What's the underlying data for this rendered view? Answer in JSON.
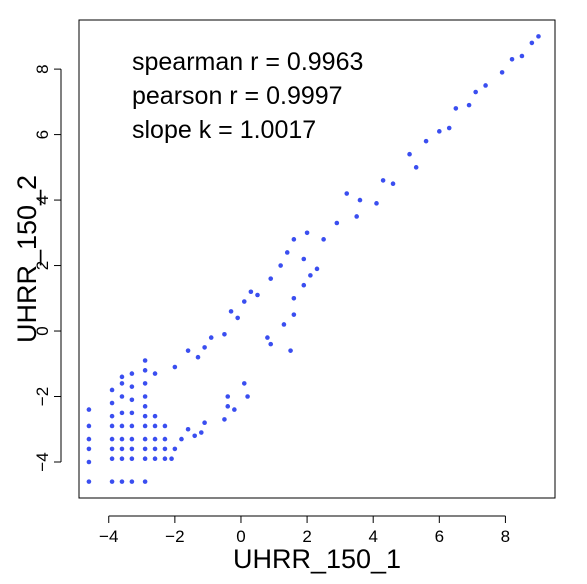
{
  "chart_data": {
    "type": "scatter",
    "xlabel": "UHRR_150_1",
    "ylabel": "UHRR_150_2",
    "xlim": [
      -4.9,
      9.5
    ],
    "ylim": [
      -5.1,
      9.5
    ],
    "x_ticks": [
      -4,
      -2,
      0,
      2,
      4,
      6,
      8
    ],
    "y_ticks": [
      -4,
      -2,
      0,
      2,
      4,
      6,
      8
    ],
    "x_tick_labels": [
      "−4",
      "−2",
      "0",
      "2",
      "4",
      "6",
      "8"
    ],
    "y_tick_labels": [
      "−4",
      "−2",
      "0",
      "2",
      "4",
      "6",
      "8"
    ],
    "grid": false,
    "point_color": "#3a4ef0",
    "annotations": [
      "spearman r =  0.9963",
      "pearson r =  0.9997",
      "slope k =  1.0017"
    ],
    "series": [
      {
        "points": [
          [
            -4.6,
            -4.6
          ],
          [
            -4.6,
            -3.6
          ],
          [
            -4.6,
            -3.3
          ],
          [
            -4.6,
            -2.9
          ],
          [
            -4.6,
            -2.4
          ],
          [
            -4.6,
            -4.0
          ],
          [
            -3.9,
            -4.6
          ],
          [
            -3.9,
            -3.9
          ],
          [
            -3.9,
            -3.6
          ],
          [
            -3.9,
            -3.3
          ],
          [
            -3.9,
            -2.9
          ],
          [
            -3.9,
            -2.6
          ],
          [
            -3.9,
            -2.2
          ],
          [
            -3.9,
            -1.8
          ],
          [
            -3.6,
            -4.6
          ],
          [
            -3.6,
            -3.9
          ],
          [
            -3.6,
            -3.6
          ],
          [
            -3.6,
            -3.3
          ],
          [
            -3.6,
            -2.9
          ],
          [
            -3.6,
            -2.5
          ],
          [
            -3.6,
            -2.0
          ],
          [
            -3.6,
            -1.6
          ],
          [
            -3.6,
            -1.4
          ],
          [
            -3.3,
            -4.6
          ],
          [
            -3.3,
            -3.9
          ],
          [
            -3.3,
            -3.6
          ],
          [
            -3.3,
            -3.3
          ],
          [
            -3.3,
            -2.9
          ],
          [
            -3.3,
            -2.5
          ],
          [
            -3.3,
            -2.1
          ],
          [
            -3.3,
            -1.7
          ],
          [
            -3.3,
            -1.3
          ],
          [
            -2.9,
            -4.6
          ],
          [
            -2.9,
            -3.9
          ],
          [
            -2.9,
            -3.6
          ],
          [
            -2.9,
            -3.3
          ],
          [
            -2.9,
            -2.9
          ],
          [
            -2.9,
            -2.6
          ],
          [
            -2.9,
            -2.3
          ],
          [
            -2.9,
            -2.0
          ],
          [
            -2.9,
            -1.6
          ],
          [
            -2.9,
            -1.2
          ],
          [
            -2.9,
            -0.9
          ],
          [
            -2.6,
            -3.9
          ],
          [
            -2.6,
            -3.6
          ],
          [
            -2.6,
            -3.3
          ],
          [
            -2.6,
            -2.9
          ],
          [
            -2.6,
            -2.6
          ],
          [
            -2.6,
            -1.3
          ],
          [
            -2.3,
            -3.9
          ],
          [
            -2.3,
            -3.6
          ],
          [
            -2.3,
            -3.3
          ],
          [
            -2.3,
            -2.9
          ],
          [
            -2.1,
            -3.9
          ],
          [
            -2.0,
            -3.6
          ],
          [
            -1.8,
            -3.3
          ],
          [
            -1.6,
            -3.0
          ],
          [
            -1.4,
            -3.2
          ],
          [
            -1.1,
            -2.8
          ],
          [
            -1.2,
            -3.1
          ],
          [
            -0.5,
            -2.7
          ],
          [
            -0.4,
            -2.3
          ],
          [
            0.2,
            -2.0
          ],
          [
            0.1,
            -1.6
          ],
          [
            -0.4,
            -2.0
          ],
          [
            -0.2,
            -2.4
          ],
          [
            -1.1,
            -0.5
          ],
          [
            -1.6,
            -0.6
          ],
          [
            -2.0,
            -1.1
          ],
          [
            -1.3,
            -0.8
          ],
          [
            -0.9,
            -0.2
          ],
          [
            -0.5,
            -0.1
          ],
          [
            -0.3,
            0.6
          ],
          [
            0.1,
            0.9
          ],
          [
            0.5,
            1.1
          ],
          [
            0.9,
            1.6
          ],
          [
            0.3,
            1.2
          ],
          [
            -0.1,
            0.4
          ],
          [
            0.8,
            -0.2
          ],
          [
            0.9,
            -0.4
          ],
          [
            1.5,
            -0.6
          ],
          [
            1.3,
            0.2
          ],
          [
            1.6,
            0.5
          ],
          [
            1.9,
            1.4
          ],
          [
            1.2,
            2.0
          ],
          [
            1.4,
            2.4
          ],
          [
            1.6,
            2.8
          ],
          [
            1.9,
            2.2
          ],
          [
            2.0,
            3.0
          ],
          [
            2.5,
            2.8
          ],
          [
            2.9,
            3.3
          ],
          [
            1.6,
            1.0
          ],
          [
            2.1,
            1.7
          ],
          [
            2.3,
            1.9
          ],
          [
            3.2,
            4.2
          ],
          [
            3.5,
            3.5
          ],
          [
            3.6,
            4.0
          ],
          [
            4.1,
            3.9
          ],
          [
            4.3,
            4.6
          ],
          [
            4.6,
            4.5
          ],
          [
            5.1,
            5.4
          ],
          [
            5.3,
            5.0
          ],
          [
            5.6,
            5.8
          ],
          [
            6.0,
            6.1
          ],
          [
            6.3,
            6.2
          ],
          [
            6.5,
            6.8
          ],
          [
            6.9,
            6.9
          ],
          [
            7.1,
            7.3
          ],
          [
            7.4,
            7.5
          ],
          [
            7.9,
            7.9
          ],
          [
            8.2,
            8.3
          ],
          [
            8.5,
            8.4
          ],
          [
            8.8,
            8.8
          ],
          [
            9.0,
            9.0
          ]
        ]
      }
    ]
  }
}
